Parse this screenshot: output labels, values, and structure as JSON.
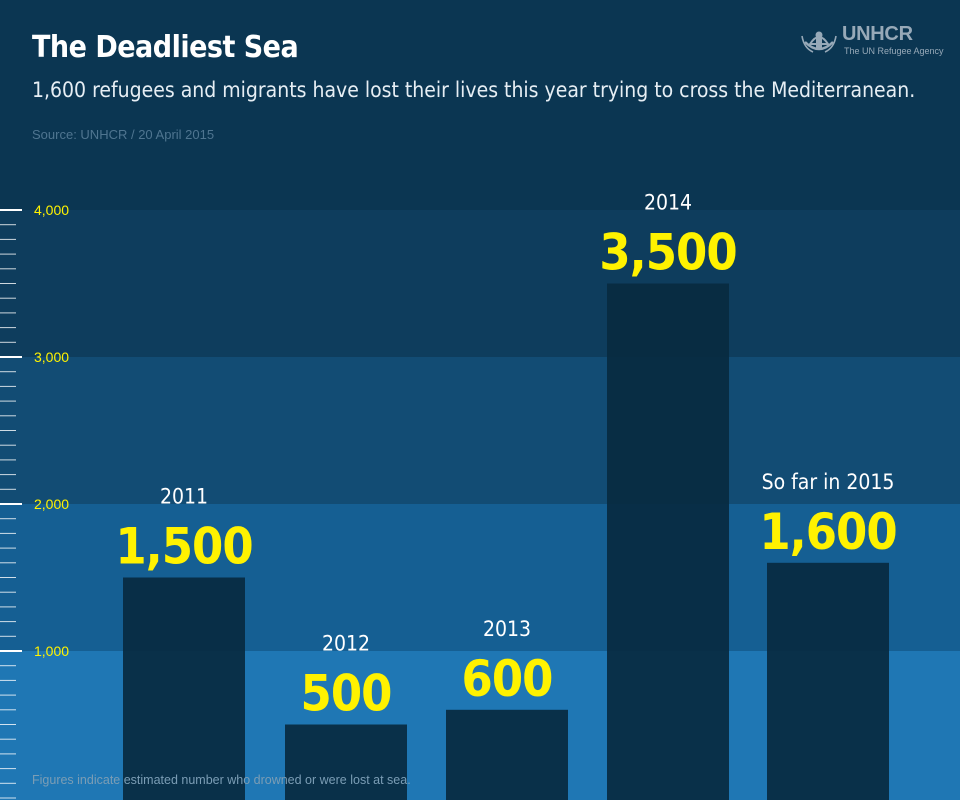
{
  "header": {
    "title": "The Deadliest Sea",
    "subtitle": "1,600 refugees and migrants have lost their lives this year trying to cross the Mediterranean.",
    "source": "Source: UNHCR / 20 April 2015"
  },
  "logo": {
    "name": "UNHCR",
    "tagline": "The UN Refugee Agency",
    "icon": "unhcr-emblem-icon"
  },
  "footnote": "Figures indicate estimated number who drowned or were lost at sea.",
  "colors": {
    "bar": "#082a40",
    "value_label": "#fff200",
    "category_label": "#ffffff",
    "tick_label": "#fff200",
    "band_0_1000": "#1f77b4",
    "band_1000_2000": "#155f93",
    "band_2000_3000": "#124c74",
    "band_3000_4000": "#0e3d5d",
    "band_top": "#0b3652"
  },
  "chart_data": {
    "type": "bar",
    "categories": [
      "2011",
      "2012",
      "2013",
      "2014",
      "So far in 2015"
    ],
    "values": [
      1500,
      500,
      600,
      3500,
      1600
    ],
    "value_labels": [
      "1,500",
      "500",
      "600",
      "3,500",
      "1,600"
    ],
    "ylim": [
      0,
      4000
    ],
    "yticks": [
      1000,
      2000,
      3000,
      4000
    ],
    "ytick_labels": [
      "1,000",
      "2,000",
      "3,000",
      "4,000"
    ],
    "grid": false,
    "xlabel": "",
    "ylabel": ""
  }
}
